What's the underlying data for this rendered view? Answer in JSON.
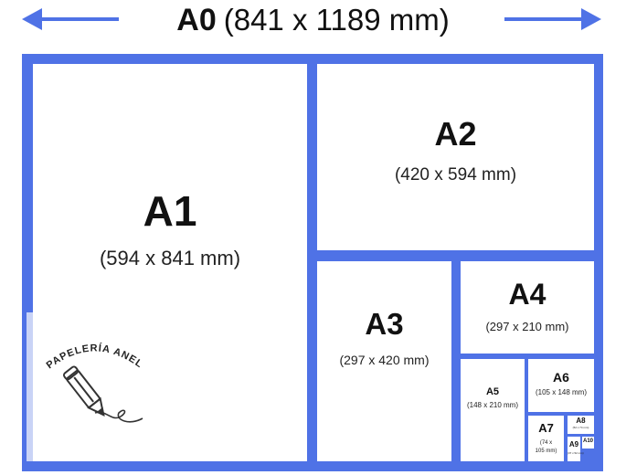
{
  "header": {
    "size_label": "A0",
    "dimensions": "(841 x 1189 mm)"
  },
  "colors": {
    "frame": "#4f72e6",
    "arrow": "#4f72e6",
    "background": "#ffffff"
  },
  "icons": {
    "left": "arrow-left-icon",
    "right": "arrow-right-icon",
    "logo": "pencil-icon"
  },
  "sheets": [
    {
      "name": "A1",
      "dims": "(594 x 841 mm)"
    },
    {
      "name": "A2",
      "dims": "(420 x 594 mm)"
    },
    {
      "name": "A3",
      "dims": "(297 x 420 mm)"
    },
    {
      "name": "A4",
      "dims": "(297 x 210 mm)"
    },
    {
      "name": "A5",
      "dims": "(148 x 210 mm)"
    },
    {
      "name": "A6",
      "dims": "(105 x 148 mm)"
    },
    {
      "name": "A7",
      "dims": "(74 x 105 mm)"
    },
    {
      "name": "A8",
      "dims": "(52 x 74 mm)"
    },
    {
      "name": "A9",
      "dims": "(37 x 52 mm)"
    },
    {
      "name": "A10",
      "dims": ""
    }
  ],
  "watermark": {
    "brand": "PAPELERÍA ANELL"
  }
}
